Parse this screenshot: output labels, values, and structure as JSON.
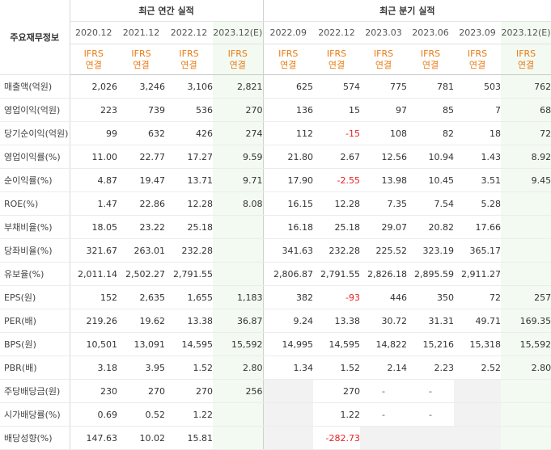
{
  "header": {
    "row_label": "주요재무정보",
    "annual_group": "최근 연간 실적",
    "quarterly_group": "최근 분기 실적",
    "annual_periods": [
      "2020.12",
      "2021.12",
      "2022.12",
      "2023.12(E)"
    ],
    "quarterly_periods": [
      "2022.09",
      "2022.12",
      "2023.03",
      "2023.06",
      "2023.09",
      "2023.12(E)"
    ],
    "standard_top": "IFRS",
    "standard_bottom": "연결"
  },
  "rows": [
    {
      "label": "매출액(억원)",
      "annual": [
        "2,026",
        "3,246",
        "3,106",
        "2,821"
      ],
      "quarterly": [
        "625",
        "574",
        "775",
        "781",
        "503",
        "762"
      ]
    },
    {
      "label": "영업이익(억원)",
      "annual": [
        "223",
        "739",
        "536",
        "270"
      ],
      "quarterly": [
        "136",
        "15",
        "97",
        "85",
        "7",
        "68"
      ]
    },
    {
      "label": "당기순이익(억원)",
      "annual": [
        "99",
        "632",
        "426",
        "274"
      ],
      "quarterly": [
        "112",
        "-15",
        "108",
        "82",
        "18",
        "72"
      ]
    },
    {
      "label": "영업이익률(%)",
      "annual": [
        "11.00",
        "22.77",
        "17.27",
        "9.59"
      ],
      "quarterly": [
        "21.80",
        "2.67",
        "12.56",
        "10.94",
        "1.43",
        "8.92"
      ]
    },
    {
      "label": "순이익률(%)",
      "annual": [
        "4.87",
        "19.47",
        "13.71",
        "9.71"
      ],
      "quarterly": [
        "17.90",
        "-2.55",
        "13.98",
        "10.45",
        "3.51",
        "9.45"
      ]
    },
    {
      "label": "ROE(%)",
      "annual": [
        "1.47",
        "22.86",
        "12.28",
        "8.08"
      ],
      "quarterly": [
        "16.15",
        "12.28",
        "7.35",
        "7.54",
        "5.28",
        ""
      ]
    },
    {
      "label": "부채비율(%)",
      "annual": [
        "18.05",
        "23.22",
        "25.18",
        ""
      ],
      "quarterly": [
        "16.18",
        "25.18",
        "29.07",
        "20.82",
        "17.66",
        ""
      ]
    },
    {
      "label": "당좌비율(%)",
      "annual": [
        "321.67",
        "263.01",
        "232.28",
        ""
      ],
      "quarterly": [
        "341.63",
        "232.28",
        "225.52",
        "323.19",
        "365.17",
        ""
      ]
    },
    {
      "label": "유보율(%)",
      "annual": [
        "2,011.14",
        "2,502.27",
        "2,791.55",
        ""
      ],
      "quarterly": [
        "2,806.87",
        "2,791.55",
        "2,826.18",
        "2,895.59",
        "2,911.27",
        ""
      ]
    },
    {
      "label": "EPS(원)",
      "annual": [
        "152",
        "2,635",
        "1,655",
        "1,183"
      ],
      "quarterly": [
        "382",
        "-93",
        "446",
        "350",
        "72",
        "257"
      ]
    },
    {
      "label": "PER(배)",
      "annual": [
        "219.26",
        "19.62",
        "13.38",
        "36.87"
      ],
      "quarterly": [
        "9.24",
        "13.38",
        "30.72",
        "31.31",
        "49.71",
        "169.35"
      ]
    },
    {
      "label": "BPS(원)",
      "annual": [
        "10,501",
        "13,091",
        "14,595",
        "15,592"
      ],
      "quarterly": [
        "14,995",
        "14,595",
        "14,822",
        "15,216",
        "15,318",
        "15,592"
      ]
    },
    {
      "label": "PBR(배)",
      "annual": [
        "3.18",
        "3.95",
        "1.52",
        "2.80"
      ],
      "quarterly": [
        "1.34",
        "1.52",
        "2.14",
        "2.23",
        "2.52",
        "2.80"
      ]
    },
    {
      "label": "주당배당금(원)",
      "annual": [
        "230",
        "270",
        "270",
        "256"
      ],
      "quarterly": [
        "",
        "270",
        "-",
        "-",
        "",
        ""
      ]
    },
    {
      "label": "시가배당률(%)",
      "annual": [
        "0.69",
        "0.52",
        "1.22",
        ""
      ],
      "quarterly": [
        "",
        "1.22",
        "-",
        "-",
        "",
        ""
      ]
    },
    {
      "label": "배당성향(%)",
      "annual": [
        "147.63",
        "10.02",
        "15.81",
        ""
      ],
      "quarterly": [
        "",
        "-282.73",
        "",
        "",
        "",
        ""
      ]
    }
  ],
  "colors": {
    "standard_text": "#e87b16",
    "negative_text": "#e82020",
    "estimate_bg": "#f3faf1",
    "empty_bg": "#f2f2f2"
  }
}
